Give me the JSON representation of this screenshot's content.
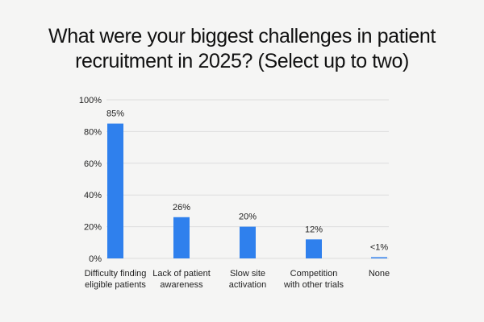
{
  "title_lines": [
    "What were your biggest challenges in patient",
    "recruitment in 2025? (Select up to two)"
  ],
  "colors": {
    "bar": "#2f80ed",
    "grid": "#dddddd",
    "background": "#f5f5f4"
  },
  "chart_data": {
    "type": "bar",
    "title": "What were your biggest challenges in patient recruitment in 2025? (Select up to two)",
    "categories": [
      [
        "Difficulty finding",
        "eligible patients"
      ],
      [
        "Lack of patient",
        "awareness"
      ],
      [
        "Slow site",
        "activation"
      ],
      [
        "Competition",
        "with other trials"
      ],
      [
        "None"
      ]
    ],
    "values": [
      85,
      26,
      20,
      12,
      0.5
    ],
    "data_labels": [
      "85%",
      "26%",
      "20%",
      "12%",
      "<1%"
    ],
    "yticks": [
      0,
      20,
      40,
      60,
      80,
      100
    ],
    "ytick_labels": [
      "0%",
      "20%",
      "40%",
      "60%",
      "80%",
      "100%"
    ],
    "ylim": [
      0,
      100
    ],
    "xlabel": "",
    "ylabel": "",
    "grid": true,
    "legend": "none"
  }
}
